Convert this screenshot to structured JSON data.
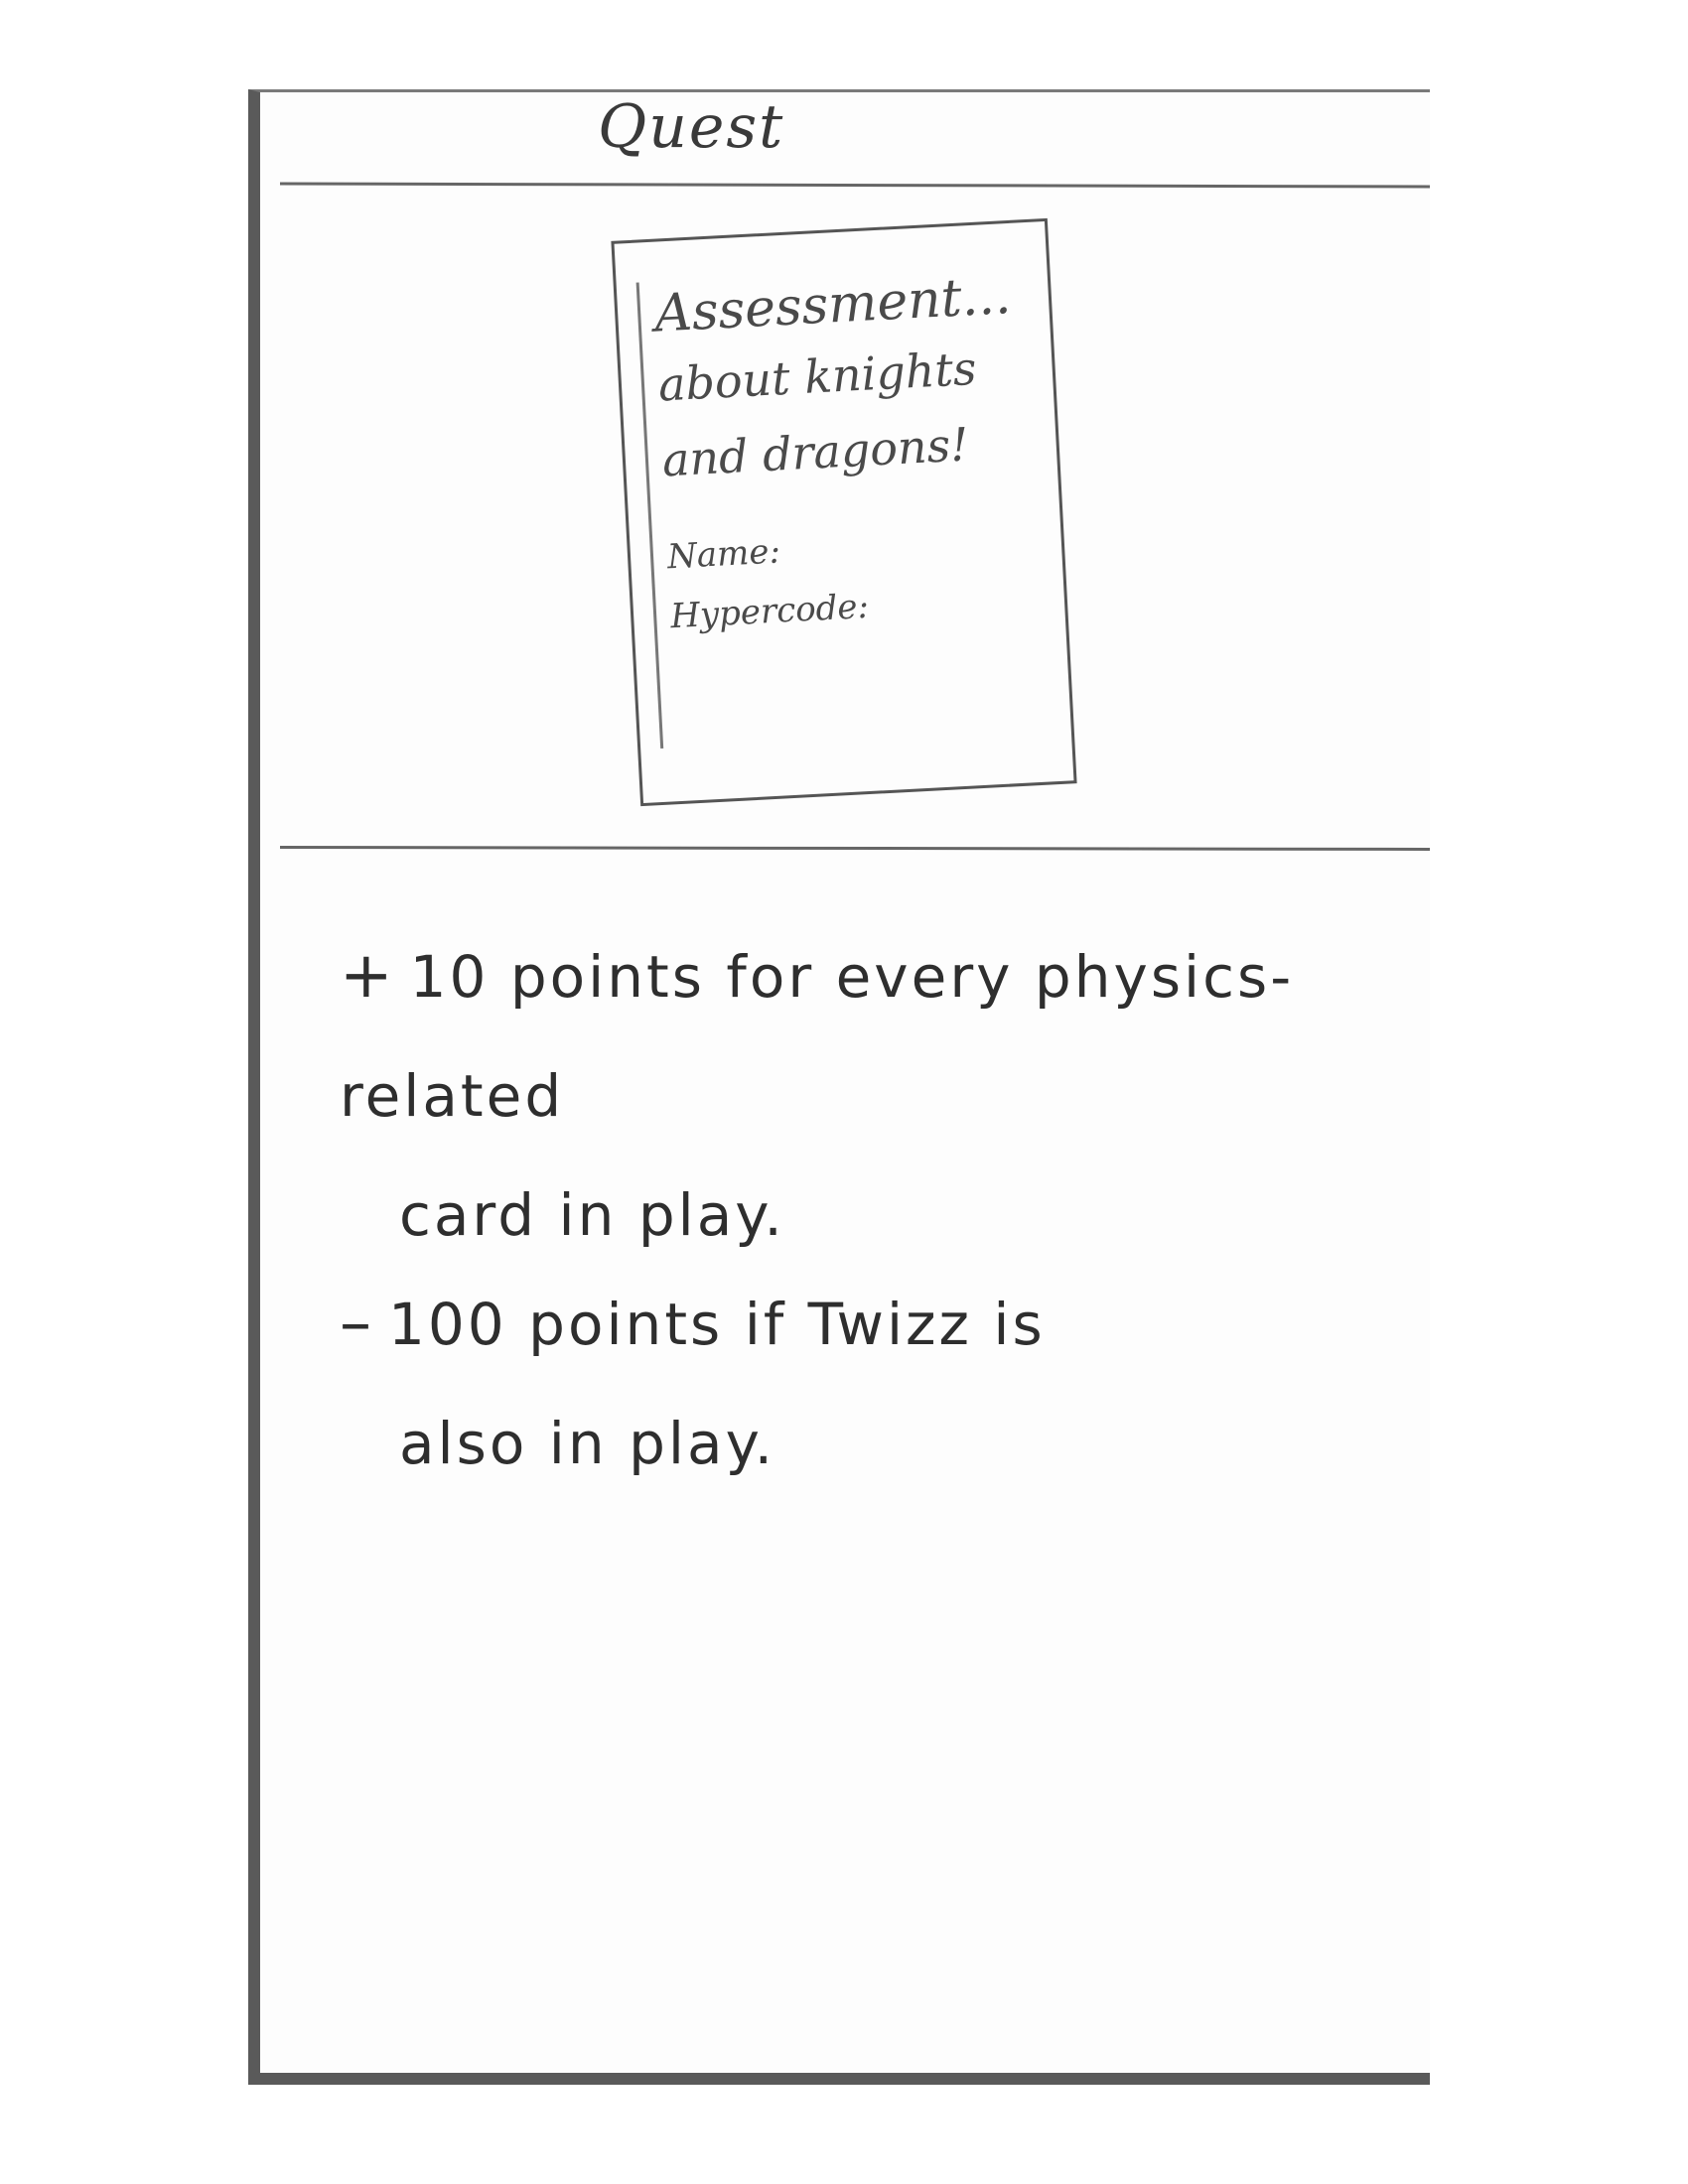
{
  "card": {
    "title": "Quest",
    "art": {
      "heading": "Assessment...",
      "lines": [
        "about knights",
        "and dragons!"
      ],
      "fields": [
        "Name:",
        "Hypercode:"
      ]
    },
    "rules": [
      {
        "symbol": "+",
        "text_line1": "10 points for every physics-related",
        "text_line2": "card in play."
      },
      {
        "symbol": "–",
        "text_line1": "100 points if Twizz is",
        "text_line2": "also in play."
      }
    ]
  }
}
